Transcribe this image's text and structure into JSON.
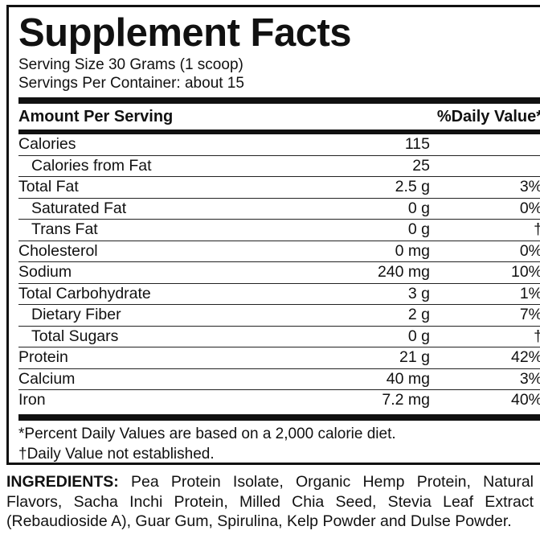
{
  "title": "Supplement Facts",
  "serving_size": "Serving Size 30 Grams (1 scoop)",
  "servings_per_container": "Servings Per Container: about 15",
  "header": {
    "amount": "Amount Per Serving",
    "daily": "%Daily Value*"
  },
  "rows": [
    {
      "name": "Calories",
      "amount": "115",
      "dv": "",
      "indent": false
    },
    {
      "name": "Calories from Fat",
      "amount": "25",
      "dv": "",
      "indent": true
    },
    {
      "name": "Total Fat",
      "amount": "2.5 g",
      "dv": "3%",
      "indent": false
    },
    {
      "name": "Saturated Fat",
      "amount": "0 g",
      "dv": "0%",
      "indent": true
    },
    {
      "name": "Trans Fat",
      "amount": "0 g",
      "dv": "†",
      "indent": true
    },
    {
      "name": "Cholesterol",
      "amount": "0 mg",
      "dv": "0%",
      "indent": false
    },
    {
      "name": "Sodium",
      "amount": "240 mg",
      "dv": "10%",
      "indent": false
    },
    {
      "name": "Total Carbohydrate",
      "amount": "3 g",
      "dv": "1%",
      "indent": false
    },
    {
      "name": "Dietary Fiber",
      "amount": "2 g",
      "dv": "7%",
      "indent": true
    },
    {
      "name": "Total Sugars",
      "amount": "0 g",
      "dv": "†",
      "indent": true
    },
    {
      "name": "Protein",
      "amount": "21 g",
      "dv": "42%",
      "indent": false
    },
    {
      "name": "Calcium",
      "amount": "40 mg",
      "dv": "3%",
      "indent": false
    },
    {
      "name": "Iron",
      "amount": "7.2 mg",
      "dv": "40%",
      "indent": false
    }
  ],
  "footnotes": [
    "*Percent Daily Values are based on a 2,000 calorie diet.",
    "†Daily Value not established."
  ],
  "ingredients": {
    "label": "INGREDIENTS:",
    "text": " Pea Protein Isolate, Organic Hemp Protein, Natural Flavors, Sacha Inchi Protein, Milled Chia Seed, Stevia Leaf Extract (Rebaudioside A), Guar Gum, Spirulina, Kelp Powder and Dulse Powder."
  }
}
